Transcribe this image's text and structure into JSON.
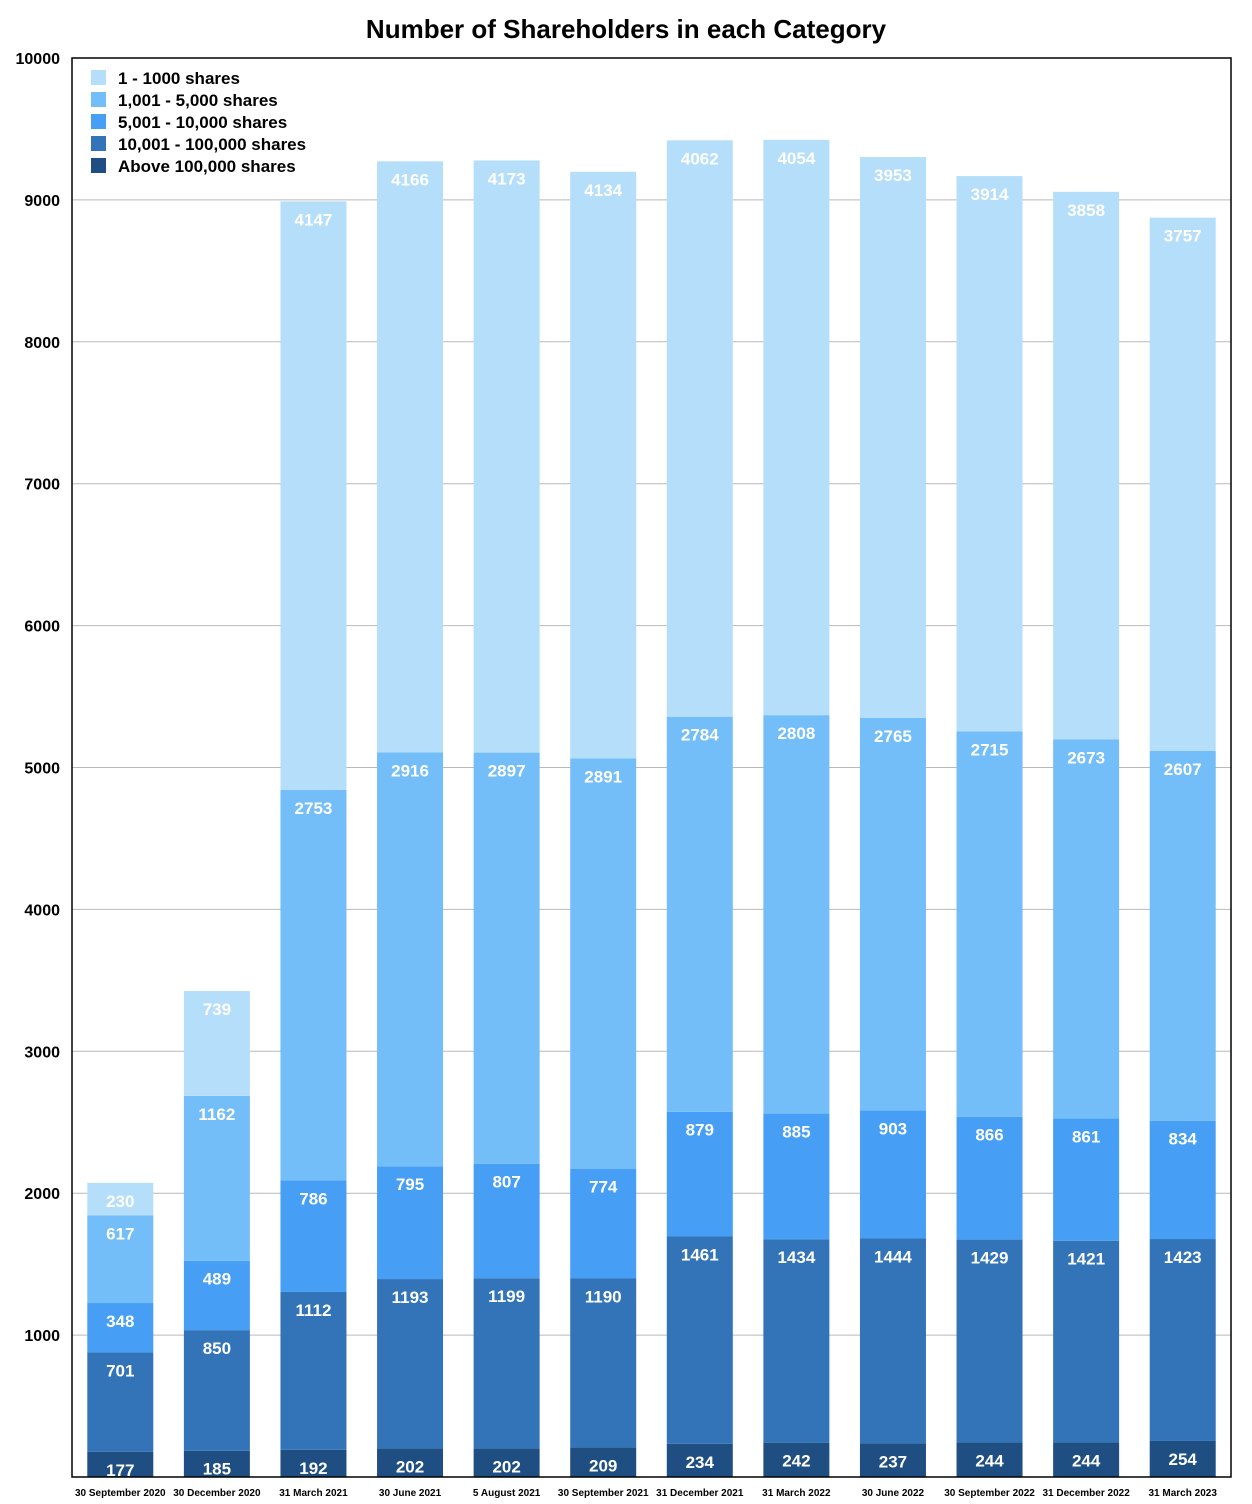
{
  "chart_data": {
    "type": "bar",
    "stacked": true,
    "title": "Number of Shareholders in each Category",
    "xlabel": "",
    "ylabel": "",
    "ylim": [
      0,
      10000
    ],
    "yticks": [
      "1000",
      "2000",
      "3000",
      "4000",
      "5000",
      "6000",
      "7000",
      "8000",
      "9000",
      "10000"
    ],
    "grid": true,
    "legend_position": "top-left",
    "categories": [
      "30 September 2020",
      "30 December 2020",
      "31 March 2021",
      "30 June 2021",
      "5 August 2021",
      "30 September 2021",
      "31 December 2021",
      "31 March 2022",
      "30 June 2022",
      "30 September 2022",
      "31 December 2022",
      "31 March 2023"
    ],
    "series": [
      {
        "name": "Above 100,000 shares",
        "color": "#1f4e82",
        "values": [
          177,
          185,
          192,
          202,
          202,
          209,
          234,
          242,
          237,
          244,
          244,
          254
        ]
      },
      {
        "name": "10,001 - 100,000 shares",
        "color": "#3374b8",
        "values": [
          701,
          850,
          1112,
          1193,
          1199,
          1190,
          1461,
          1434,
          1444,
          1429,
          1421,
          1423
        ]
      },
      {
        "name": "5,001 - 10,000 shares",
        "color": "#479ef5",
        "values": [
          348,
          489,
          786,
          795,
          807,
          774,
          879,
          885,
          903,
          866,
          861,
          834
        ]
      },
      {
        "name": "1,001 - 5,000 shares",
        "color": "#73bef8",
        "values": [
          617,
          1162,
          2753,
          2916,
          2897,
          2891,
          2784,
          2808,
          2765,
          2715,
          2673,
          2607
        ]
      },
      {
        "name": "1 - 1000 shares",
        "color": "#b5defa",
        "values": [
          230,
          739,
          4147,
          4166,
          4173,
          4134,
          4062,
          4054,
          3953,
          3914,
          3858,
          3757
        ]
      }
    ]
  }
}
